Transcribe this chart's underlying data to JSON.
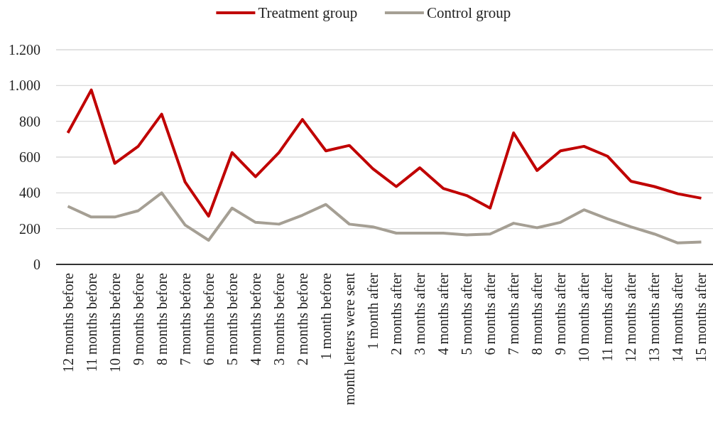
{
  "chart_data": {
    "type": "line",
    "categories": [
      "12 months before",
      "11 months before",
      "10 months before",
      "9 months before",
      "8 months before",
      "7 months before",
      "6 months before",
      "5 months before",
      "4 months before",
      "3 months before",
      "2 months before",
      "1 month before",
      "month letters were sent",
      "1 month after",
      "2 months after",
      "3 months after",
      "4 months after",
      "5 months after",
      "6 months after",
      "7 months after",
      "8 months after",
      "9 months after",
      "10 months after",
      "11 months after",
      "12 months after",
      "13 months after",
      "14 months after",
      "15 months after"
    ],
    "series": [
      {
        "name": "Treatment group",
        "color": "#c00000",
        "values": [
          735,
          975,
          565,
          660,
          840,
          460,
          270,
          625,
          490,
          625,
          810,
          635,
          665,
          535,
          435,
          540,
          425,
          385,
          315,
          735,
          525,
          635,
          660,
          605,
          465,
          435,
          395,
          370
        ]
      },
      {
        "name": "Control group",
        "color": "#a59f94",
        "values": [
          325,
          265,
          265,
          300,
          400,
          220,
          135,
          315,
          235,
          225,
          275,
          335,
          225,
          210,
          175,
          175,
          175,
          165,
          170,
          230,
          205,
          235,
          305,
          255,
          210,
          170,
          120,
          125
        ]
      }
    ],
    "ylim": [
      0,
      1200
    ],
    "yticks": [
      0,
      200,
      400,
      600,
      800,
      {
        "value": 1000,
        "label": "1.000"
      },
      {
        "value": 1200,
        "label": "1.200"
      }
    ],
    "grid": "y",
    "legend": "top"
  }
}
